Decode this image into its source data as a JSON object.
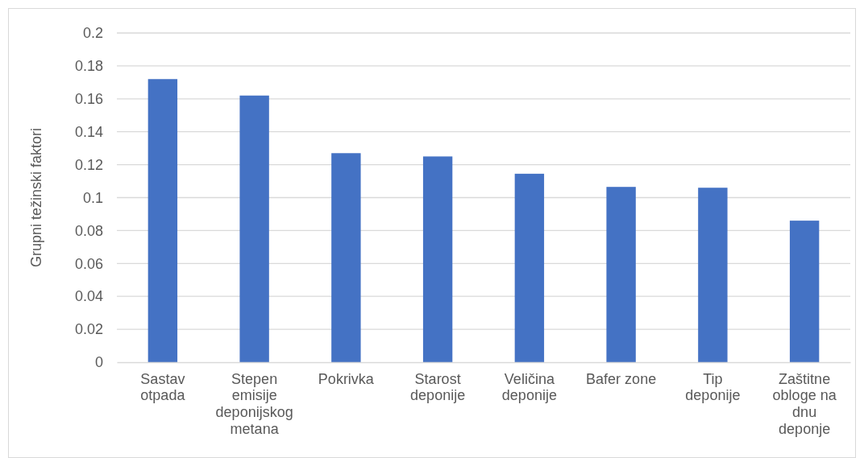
{
  "chart_data": {
    "type": "bar",
    "ylabel": "Grupni težinski faktori",
    "categories": [
      "Sastav otpada",
      "Stepen emisije deponijskog metana",
      "Pokrivka",
      "Starost deponije",
      "Veličina deponije",
      "Bafer zone",
      "Tip deponije",
      "Zaštitne obloge na dnu deponje"
    ],
    "values": [
      0.172,
      0.162,
      0.127,
      0.125,
      0.1145,
      0.1065,
      0.106,
      0.086
    ],
    "color": "#4472c4",
    "ylim": [
      0,
      0.2
    ],
    "yticks": [
      0,
      0.02,
      0.04,
      0.06,
      0.08,
      0.1,
      0.12,
      0.14,
      0.16,
      0.18,
      0.2
    ],
    "grid": "y"
  }
}
